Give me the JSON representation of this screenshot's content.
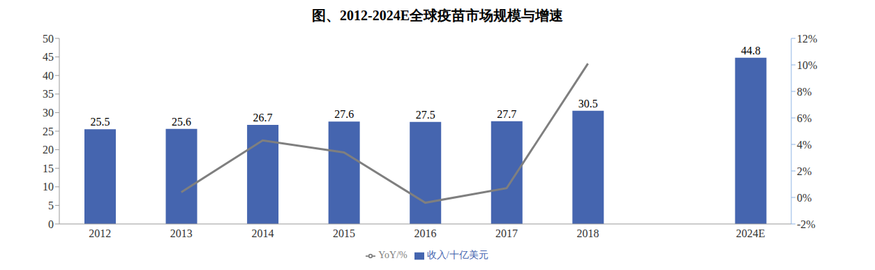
{
  "chart_data": {
    "type": "bar",
    "title": "图、2012-2024E全球疫苗市场规模与增速",
    "categories": [
      "2012",
      "2013",
      "2014",
      "2015",
      "2016",
      "2017",
      "2018",
      null,
      "2024E"
    ],
    "series": [
      {
        "name": "收入/十亿美元",
        "type": "bar",
        "color": "#4565AF",
        "data_labels": true,
        "values": [
          25.5,
          25.6,
          26.7,
          27.6,
          27.5,
          27.7,
          30.5,
          null,
          44.8
        ]
      },
      {
        "name": "YoY/%",
        "type": "line",
        "color": "#7F7F7F",
        "axis": "y2",
        "values": [
          null,
          0.4,
          4.3,
          3.4,
          -0.4,
          0.7,
          10.1,
          null,
          null
        ]
      }
    ],
    "ylim": [
      0,
      50
    ],
    "yticks": [
      0,
      5,
      10,
      15,
      20,
      25,
      30,
      35,
      40,
      45,
      50
    ],
    "y2lim": [
      -2,
      12
    ],
    "y2ticks": [
      {
        "value": -2,
        "label": "-2%"
      },
      {
        "value": 0,
        "label": "0%"
      },
      {
        "value": 2,
        "label": "2%"
      },
      {
        "value": 4,
        "label": "4%"
      },
      {
        "value": 6,
        "label": "6%"
      },
      {
        "value": 8,
        "label": "8%"
      },
      {
        "value": 10,
        "label": "10%"
      },
      {
        "value": 12,
        "label": "12%"
      }
    ],
    "legend": "bottom",
    "grid": false
  }
}
